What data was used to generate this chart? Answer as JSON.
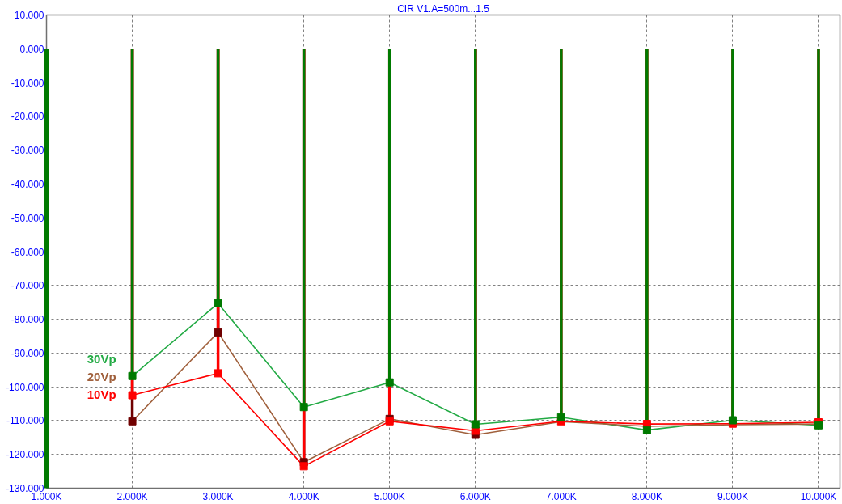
{
  "chart_data": {
    "type": "line",
    "title": "CIR V1.A=500m...1.5",
    "x": [
      2000,
      3000,
      4000,
      5000,
      6000,
      7000,
      8000,
      9000,
      10000
    ],
    "series": [
      {
        "type": "lollipop",
        "color": "#700000",
        "values": [
          -110.2,
          -83.9,
          -122.3,
          -109.5,
          -114.2,
          null,
          null,
          null,
          null
        ]
      },
      {
        "type": "lollipop",
        "color": "#ff0000",
        "values": [
          -102.5,
          -96.0,
          -123.5,
          -110.2,
          -113.0,
          -110.2,
          -111.0,
          -110.9,
          -110.5
        ]
      },
      {
        "type": "lollipop",
        "color": "#007a00",
        "values": [
          -96.8,
          -75.3,
          -106.0,
          -98.7,
          -111.1,
          -109.0,
          -112.8,
          -109.9,
          -111.4
        ]
      },
      {
        "name": "30Vp",
        "color": "#22aa44",
        "marker": "none",
        "values": [
          -96.8,
          -75.3,
          -106.0,
          -98.7,
          -111.1,
          -109.0,
          -112.8,
          -109.9,
          -111.4
        ]
      },
      {
        "name": "20Vp",
        "color": "#a0603c",
        "marker": "none",
        "values": [
          -110.2,
          -83.9,
          -122.3,
          -109.5,
          -114.2,
          -110.3,
          -111.7,
          -111.2,
          -111.0
        ]
      },
      {
        "name": "10Vp",
        "color": "#ff0000",
        "marker": "none",
        "values": [
          -102.5,
          -96.0,
          -123.5,
          -110.2,
          -113.0,
          -110.2,
          -111.0,
          -110.9,
          -110.5
        ]
      }
    ],
    "xlim": [
      1000,
      10250
    ],
    "ylim": [
      -130,
      10
    ],
    "xticks": [
      {
        "value": 1000,
        "label": "1.000K"
      },
      {
        "value": 2000,
        "label": "2.000K"
      },
      {
        "value": 3000,
        "label": "3.000K"
      },
      {
        "value": 4000,
        "label": "4.000K"
      },
      {
        "value": 5000,
        "label": "5.000K"
      },
      {
        "value": 6000,
        "label": "6.000K"
      },
      {
        "value": 7000,
        "label": "7.000K"
      },
      {
        "value": 8000,
        "label": "8.000K"
      },
      {
        "value": 9000,
        "label": "9.000K"
      },
      {
        "value": 10000,
        "label": "10.000K"
      }
    ],
    "yticks": [
      {
        "value": 10,
        "label": "10.000"
      },
      {
        "value": 0,
        "label": "0.000"
      },
      {
        "value": -10,
        "label": "-10.000"
      },
      {
        "value": -20,
        "label": "-20.000"
      },
      {
        "value": -30,
        "label": "-30.000"
      },
      {
        "value": -40,
        "label": "-40.000"
      },
      {
        "value": -50,
        "label": "-50.000"
      },
      {
        "value": -60,
        "label": "-60.000"
      },
      {
        "value": -70,
        "label": "-70.000"
      },
      {
        "value": -80,
        "label": "-80.000"
      },
      {
        "value": -90,
        "label": "-90.000"
      },
      {
        "value": -100,
        "label": "-100.000"
      },
      {
        "value": -110,
        "label": "-110.000"
      },
      {
        "value": -120,
        "label": "-120.000"
      },
      {
        "value": -130,
        "label": "-130.000"
      }
    ],
    "ref_lines": [
      {
        "axis": "x",
        "value": 1000,
        "color": "#007a00"
      }
    ],
    "grid": true,
    "marker": "square",
    "line_style": "solid"
  }
}
